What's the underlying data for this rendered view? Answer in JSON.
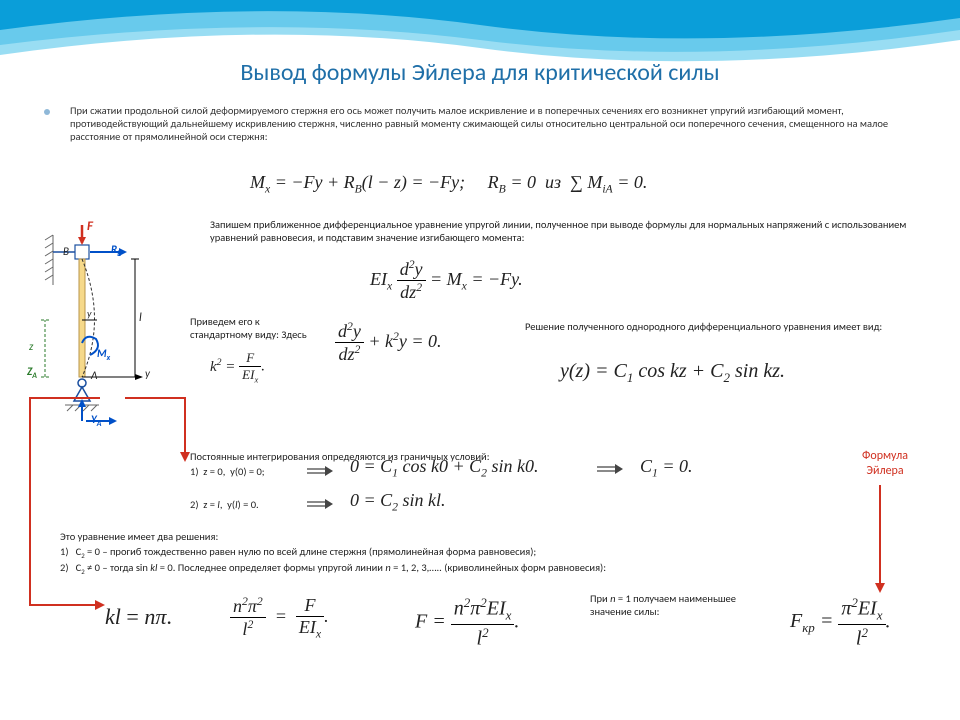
{
  "title": "Вывод формулы Эйлера для критической силы",
  "intro": "При сжатии продольной силой деформируемого стержня его ось может получить малое искривление и в поперечных сечениях его возникнет упругий изгибающий момент, противодействующий дальнейшему искривлению стержня, численно равный моменту сжимающей силы относительно центральной оси поперечного сечения, смещенного на малое расстояние от прямолинейной оси стержня:",
  "eq_moment": "M<span class='sub'>x</span> = −Fy + R<span class='sub'>B</span>(l − z) = −Fy; &nbsp;&nbsp;&nbsp; R<span class='sub'>B</span> = 0 &nbsp;из&nbsp; ∑ M<span class='sub'>iA</span> = 0.",
  "text_de": "Запишем приближенное дифференциальное уравнение упругой линии, полученное при выводе формулы для нормальных напряжений с использованием уравнений равновесия, и подставим значение изгибающего момента:",
  "eq_EI_n": "d<span class='sup2'>2</span>y",
  "eq_EI_d": "dz<span class='sup2'>2</span>",
  "eq_EI_l": "EI<span class='sub'>x</span>",
  "eq_EI_r": "= M<span class='sub'>x</span> = −Fy.",
  "text_std": "Приведем его к стандартному виду: Здесь",
  "eq_k2_l": "k<span class='sup2'>2</span> =",
  "eq_k2_n": "F",
  "eq_k2_d": "EI<span class='sub'>x</span>",
  "eq_std_r": "+ k<span class='sup2'>2</span>y = 0.",
  "text_sol": "Решение полученного однородного дифференциального уравнения имеет вид:",
  "eq_sol": "y(z) = C<span class='sub'>1</span> cos <i>kz</i> + C<span class='sub'>2</span> sin <i>kz</i>.",
  "text_bc": "Постоянные интегрирования определяются из граничных условий:",
  "bc1": "1) &nbsp;z = 0, &nbsp;y(0) = 0;",
  "bc2": "2) &nbsp;z = <i>l</i>, &nbsp;y(<i>l</i>) = 0.",
  "eq_bc1": "0 = C<span class='sub'>1</span> cos <i>k</i>0 + C<span class='sub'>2</span> sin <i>k</i>0.",
  "eq_c1": "C<span class='sub'>1</span> = 0.",
  "eq_bc2": "0 = C<span class='sub'>2</span> sin <i>kl</i>.",
  "text_two": "Это уравнение имеет два решения:",
  "sol1": "1) &nbsp;&nbsp;C<span class='sub'>2</span> = 0 – прогиб тождественно равен нулю по всей длине стержня (прямолинейная форма равновесия);",
  "sol2": "2) &nbsp;&nbsp;C<span class='sub'>2</span> ≠ 0 – тогда sin <i>kl</i> = 0. Последнее определяет формы упругой линии <i>n</i> = 1, 2, 3,….. (криволинейных форм равновесия):",
  "eq_kl": "<i>kl</i> = <i>nπ</i>.",
  "eq_r1_n": "n<span class='sup2'>2</span>π<span class='sup2'>2</span>",
  "eq_r1_d": "l<span class='sup2'>2</span>",
  "eq_r1_r_n": "F",
  "eq_r1_r_d": "EI<span class='sub'>x</span>",
  "eq_F_l": "F =",
  "eq_F_n": "n<span class='sup2'>2</span>π<span class='sup2'>2</span>EI<span class='sub'>x</span>",
  "eq_F_d": "l<span class='sup2'>2</span>",
  "text_n1": "При <i>n</i> = 1 получаем наименьшее значение силы:",
  "eq_Fcr_l": "F<span class='sub'>кр</span> =",
  "eq_Fcr_n": "π<span class='sup2'>2</span>EI<span class='sub'>x</span>",
  "eq_Fcr_d": "l<span class='sup2'>2</span>",
  "euler_label": "Формула Эйлера",
  "diag": {
    "F": "F",
    "B": "B",
    "RB": "R<span class='sub' style='font-size:0.7em'>B</span>",
    "A": "A",
    "Mx": "M<span class='sub' style='font-size:0.7em'>x</span>",
    "ZA": "Z<span class='sub' style='font-size:0.7em'>A</span>",
    "YA": "Y<span class='sub' style='font-size:0.7em'>A</span>",
    "z": "z",
    "y": "y",
    "yy": "y",
    "l": "l"
  },
  "colors": {
    "title": "#1f6fa8",
    "swoosh1": "#0a9ed9",
    "swoosh2": "#7fd4f0",
    "red": "#d03020"
  }
}
